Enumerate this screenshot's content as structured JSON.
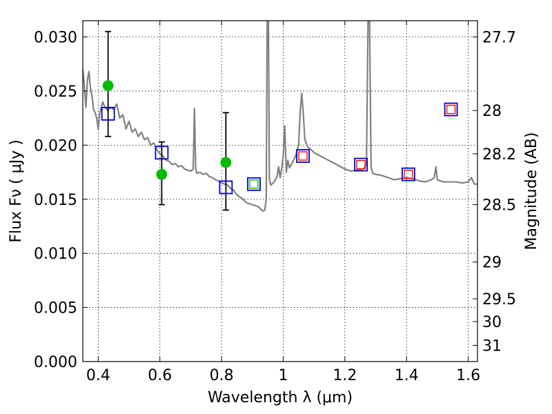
{
  "chart_data": {
    "type": "scatter",
    "xlabel": "Wavelength  λ (μm)",
    "ylabel": "Flux  Fν  ( μJy )",
    "ylabel_right": "Magnitude (AB)",
    "xlim": [
      0.35,
      1.63
    ],
    "ylim": [
      0.0,
      0.0315
    ],
    "grid": true,
    "x_ticks": [
      0.4,
      0.6,
      0.8,
      1.0,
      1.2,
      1.4,
      1.6
    ],
    "x_tick_labels": [
      "0.4",
      "0.6",
      "0.8",
      "1",
      "1.2",
      "1.4",
      "1.6"
    ],
    "y_ticks": [
      0.0,
      0.005,
      0.01,
      0.015,
      0.02,
      0.025,
      0.03
    ],
    "y_tick_labels": [
      "0.000",
      "0.005",
      "0.010",
      "0.015",
      "0.020",
      "0.025",
      "0.030"
    ],
    "right_ticks": [
      {
        "flux": 0.03,
        "label": "27.7"
      },
      {
        "flux": 0.0232,
        "label": "28"
      },
      {
        "flux": 0.0192,
        "label": "28.2"
      },
      {
        "flux": 0.0145,
        "label": "28.5"
      },
      {
        "flux": 0.0092,
        "label": "29"
      },
      {
        "flux": 0.0058,
        "label": "29.5"
      },
      {
        "flux": 0.0037,
        "label": "30"
      },
      {
        "flux": 0.0015,
        "label": "31"
      }
    ],
    "colors": {
      "model": "#808080",
      "observed": "#00bb00",
      "error": "#000000",
      "model_phot": "#0000cc",
      "inner_green": "#00bb00",
      "inner_red": "#ff0000"
    },
    "series": [
      {
        "kind": "line",
        "points": [
          [
            0.35,
            0.027
          ],
          [
            0.355,
            0.0255
          ],
          [
            0.36,
            0.0235
          ],
          [
            0.365,
            0.026
          ],
          [
            0.37,
            0.0268
          ],
          [
            0.375,
            0.0252
          ],
          [
            0.38,
            0.0245
          ],
          [
            0.385,
            0.0233
          ],
          [
            0.39,
            0.023
          ],
          [
            0.395,
            0.0225
          ],
          [
            0.4,
            0.0215
          ],
          [
            0.405,
            0.023
          ],
          [
            0.41,
            0.0235
          ],
          [
            0.415,
            0.024
          ],
          [
            0.42,
            0.0236
          ],
          [
            0.43,
            0.0232
          ],
          [
            0.44,
            0.0235
          ],
          [
            0.45,
            0.0233
          ],
          [
            0.46,
            0.0238
          ],
          [
            0.47,
            0.0225
          ],
          [
            0.48,
            0.0228
          ],
          [
            0.49,
            0.0215
          ],
          [
            0.5,
            0.0222
          ],
          [
            0.51,
            0.0212
          ],
          [
            0.52,
            0.0215
          ],
          [
            0.53,
            0.0208
          ],
          [
            0.54,
            0.0212
          ],
          [
            0.55,
            0.0205
          ],
          [
            0.56,
            0.0207
          ],
          [
            0.57,
            0.02
          ],
          [
            0.58,
            0.0202
          ],
          [
            0.59,
            0.0196
          ],
          [
            0.6,
            0.0192
          ],
          [
            0.61,
            0.019
          ],
          [
            0.62,
            0.0186
          ],
          [
            0.63,
            0.0185
          ],
          [
            0.64,
            0.0182
          ],
          [
            0.65,
            0.0183
          ],
          [
            0.66,
            0.018
          ],
          [
            0.67,
            0.0181
          ],
          [
            0.68,
            0.0178
          ],
          [
            0.69,
            0.0177
          ],
          [
            0.7,
            0.0176
          ],
          [
            0.708,
            0.0178
          ],
          [
            0.712,
            0.0234
          ],
          [
            0.716,
            0.0178
          ],
          [
            0.72,
            0.0174
          ],
          [
            0.73,
            0.0175
          ],
          [
            0.74,
            0.0173
          ],
          [
            0.75,
            0.0174
          ],
          [
            0.76,
            0.0171
          ],
          [
            0.77,
            0.017
          ],
          [
            0.78,
            0.0168
          ],
          [
            0.79,
            0.0167
          ],
          [
            0.8,
            0.0165
          ],
          [
            0.81,
            0.0164
          ],
          [
            0.82,
            0.0163
          ],
          [
            0.83,
            0.016
          ],
          [
            0.84,
            0.0158
          ],
          [
            0.85,
            0.0154
          ],
          [
            0.86,
            0.0152
          ],
          [
            0.87,
            0.015
          ],
          [
            0.88,
            0.0147
          ],
          [
            0.89,
            0.0146
          ],
          [
            0.9,
            0.0145
          ],
          [
            0.91,
            0.0144
          ],
          [
            0.92,
            0.0143
          ],
          [
            0.93,
            0.014
          ],
          [
            0.935,
            0.0139
          ],
          [
            0.94,
            0.014
          ],
          [
            0.945,
            0.015
          ],
          [
            0.948,
            0.0315
          ],
          [
            0.952,
            0.0315
          ],
          [
            0.955,
            0.0168
          ],
          [
            0.96,
            0.0163
          ],
          [
            0.97,
            0.0166
          ],
          [
            0.98,
            0.0171
          ],
          [
            0.985,
            0.018
          ],
          [
            0.99,
            0.017
          ],
          [
            0.995,
            0.0178
          ],
          [
            1.0,
            0.019
          ],
          [
            1.005,
            0.0218
          ],
          [
            1.01,
            0.0175
          ],
          [
            1.015,
            0.0186
          ],
          [
            1.02,
            0.0179
          ],
          [
            1.03,
            0.0184
          ],
          [
            1.04,
            0.019
          ],
          [
            1.05,
            0.02
          ],
          [
            1.055,
            0.023
          ],
          [
            1.06,
            0.0248
          ],
          [
            1.065,
            0.023
          ],
          [
            1.07,
            0.0205
          ],
          [
            1.08,
            0.0198
          ],
          [
            1.09,
            0.0196
          ],
          [
            1.1,
            0.0193
          ],
          [
            1.12,
            0.019
          ],
          [
            1.14,
            0.0187
          ],
          [
            1.16,
            0.0184
          ],
          [
            1.18,
            0.0181
          ],
          [
            1.2,
            0.0178
          ],
          [
            1.22,
            0.0176
          ],
          [
            1.24,
            0.0177
          ],
          [
            1.26,
            0.0178
          ],
          [
            1.27,
            0.0182
          ],
          [
            1.275,
            0.0315
          ],
          [
            1.28,
            0.0315
          ],
          [
            1.285,
            0.018
          ],
          [
            1.29,
            0.0174
          ],
          [
            1.3,
            0.0173
          ],
          [
            1.32,
            0.0172
          ],
          [
            1.34,
            0.017
          ],
          [
            1.36,
            0.0168
          ],
          [
            1.38,
            0.0169
          ],
          [
            1.4,
            0.017
          ],
          [
            1.42,
            0.0169
          ],
          [
            1.44,
            0.0167
          ],
          [
            1.46,
            0.0166
          ],
          [
            1.48,
            0.0168
          ],
          [
            1.49,
            0.017
          ],
          [
            1.495,
            0.018
          ],
          [
            1.5,
            0.0168
          ],
          [
            1.52,
            0.0166
          ],
          [
            1.54,
            0.0166
          ],
          [
            1.56,
            0.0166
          ],
          [
            1.58,
            0.0165
          ],
          [
            1.6,
            0.0166
          ],
          [
            1.61,
            0.017
          ],
          [
            1.62,
            0.0164
          ],
          [
            1.63,
            0.0164
          ]
        ]
      },
      {
        "kind": "observed",
        "points": [
          {
            "x": 0.432,
            "y": 0.0255,
            "err": [
              0.0208,
              0.0305
            ]
          },
          {
            "x": 0.606,
            "y": 0.0173,
            "err": [
              0.0145,
              0.0203
            ]
          },
          {
            "x": 0.814,
            "y": 0.0184,
            "err": [
              0.014,
              0.023
            ]
          }
        ]
      },
      {
        "kind": "model_phot",
        "points": [
          {
            "x": 0.432,
            "y": 0.0229,
            "inner": null
          },
          {
            "x": 0.606,
            "y": 0.0193,
            "inner": null
          },
          {
            "x": 0.814,
            "y": 0.0161,
            "inner": null
          },
          {
            "x": 0.905,
            "y": 0.0164,
            "inner": "green"
          },
          {
            "x": 1.064,
            "y": 0.019,
            "inner": "red"
          },
          {
            "x": 1.252,
            "y": 0.0182,
            "inner": "red"
          },
          {
            "x": 1.406,
            "y": 0.0173,
            "inner": "red"
          },
          {
            "x": 1.544,
            "y": 0.0233,
            "inner": "red"
          }
        ]
      }
    ]
  }
}
